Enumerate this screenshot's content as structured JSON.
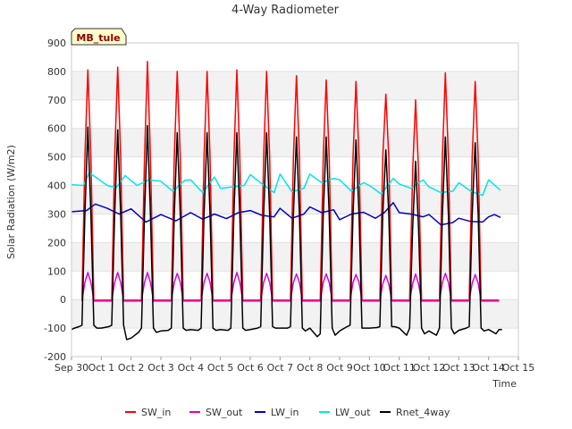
{
  "chart_data": {
    "type": "line",
    "title": "4-Way Radiometer",
    "site_label": "MB_tule",
    "xlabel": "Time",
    "ylabel": "Solar Radiation (W/m2)",
    "xlim": [
      0,
      15
    ],
    "ylim": [
      -200,
      900
    ],
    "x_ticks": [
      {
        "value": 0,
        "label": "Sep 30"
      },
      {
        "value": 1,
        "label": "Oct 1"
      },
      {
        "value": 2,
        "label": "Oct 2"
      },
      {
        "value": 3,
        "label": "Oct 3"
      },
      {
        "value": 4,
        "label": "Oct 4"
      },
      {
        "value": 5,
        "label": "Oct 5"
      },
      {
        "value": 6,
        "label": "Oct 6"
      },
      {
        "value": 7,
        "label": "Oct 7"
      },
      {
        "value": 8,
        "label": "Oct 8"
      },
      {
        "value": 9,
        "label": "Oct 9"
      },
      {
        "value": 10,
        "label": "Oct 10"
      },
      {
        "value": 11,
        "label": "Oct 11"
      },
      {
        "value": 12,
        "label": "Oct 12"
      },
      {
        "value": 13,
        "label": "Oct 13"
      },
      {
        "value": 14,
        "label": "Oct 14"
      },
      {
        "value": 15,
        "label": "Oct 15"
      }
    ],
    "y_ticks": [
      {
        "value": -200,
        "label": "-200"
      },
      {
        "value": -100,
        "label": "-100"
      },
      {
        "value": 0,
        "label": "0"
      },
      {
        "value": 100,
        "label": "100"
      },
      {
        "value": 200,
        "label": "200"
      },
      {
        "value": 300,
        "label": "300"
      },
      {
        "value": 400,
        "label": "400"
      },
      {
        "value": 500,
        "label": "500"
      },
      {
        "value": 600,
        "label": "600"
      },
      {
        "value": 700,
        "label": "700"
      },
      {
        "value": 800,
        "label": "800"
      },
      {
        "value": 900,
        "label": "900"
      }
    ],
    "legend_position": "bottom",
    "series": [
      {
        "name": "SW_in",
        "color": "#ff0000",
        "x": [
          0.35,
          0.45,
          0.55,
          0.65,
          0.75,
          1.35,
          1.45,
          1.55,
          1.65,
          1.75,
          2.35,
          2.45,
          2.55,
          2.65,
          2.75,
          3.35,
          3.45,
          3.55,
          3.65,
          3.75,
          4.35,
          4.45,
          4.55,
          4.65,
          4.75,
          5.35,
          5.45,
          5.55,
          5.65,
          5.75,
          6.35,
          6.45,
          6.55,
          6.65,
          6.75,
          7.35,
          7.45,
          7.55,
          7.65,
          7.75,
          8.35,
          8.45,
          8.55,
          8.65,
          8.75,
          9.35,
          9.45,
          9.55,
          9.65,
          9.75,
          10.35,
          10.45,
          10.55,
          10.65,
          10.75,
          11.35,
          11.45,
          11.55,
          11.65,
          11.75,
          12.35,
          12.45,
          12.55,
          12.65,
          12.75,
          13.35,
          13.45,
          13.55,
          13.65,
          13.75,
          14.35
        ],
        "y": [
          -5,
          500,
          805,
          500,
          -5,
          -5,
          500,
          815,
          500,
          -5,
          -5,
          500,
          835,
          500,
          -5,
          -5,
          500,
          800,
          500,
          -5,
          -5,
          500,
          800,
          500,
          -5,
          -5,
          500,
          805,
          500,
          -5,
          -5,
          500,
          800,
          500,
          -5,
          -5,
          500,
          785,
          500,
          -5,
          -5,
          500,
          770,
          500,
          -5,
          -5,
          500,
          765,
          500,
          -5,
          -5,
          500,
          720,
          500,
          -5,
          -5,
          450,
          700,
          450,
          -5,
          -5,
          500,
          795,
          500,
          -5,
          -5,
          500,
          765,
          500,
          -5,
          -5
        ]
      },
      {
        "name": "SW_out",
        "color": "#dd00dd",
        "x": [
          0.35,
          0.45,
          0.55,
          0.65,
          0.75,
          1.35,
          1.45,
          1.55,
          1.65,
          1.75,
          2.35,
          2.45,
          2.55,
          2.65,
          2.75,
          3.35,
          3.45,
          3.55,
          3.65,
          3.75,
          4.35,
          4.45,
          4.55,
          4.65,
          4.75,
          5.35,
          5.45,
          5.55,
          5.65,
          5.75,
          6.35,
          6.45,
          6.55,
          6.65,
          6.75,
          7.35,
          7.45,
          7.55,
          7.65,
          7.75,
          8.35,
          8.45,
          8.55,
          8.65,
          8.75,
          9.35,
          9.45,
          9.55,
          9.65,
          9.75,
          10.35,
          10.45,
          10.55,
          10.65,
          10.75,
          11.35,
          11.45,
          11.55,
          11.65,
          11.75,
          12.35,
          12.45,
          12.55,
          12.65,
          12.75,
          13.35,
          13.45,
          13.55,
          13.65,
          13.75,
          14.35
        ],
        "y": [
          -2,
          60,
          95,
          60,
          -2,
          -2,
          60,
          95,
          60,
          -2,
          -2,
          60,
          95,
          60,
          -2,
          -2,
          60,
          92,
          60,
          -2,
          -2,
          60,
          92,
          60,
          -2,
          -2,
          60,
          95,
          60,
          -2,
          -2,
          60,
          92,
          60,
          -2,
          -2,
          60,
          90,
          60,
          -2,
          -2,
          60,
          90,
          60,
          -2,
          -2,
          60,
          88,
          60,
          -2,
          -2,
          55,
          85,
          55,
          -2,
          -2,
          55,
          90,
          55,
          -2,
          -2,
          60,
          92,
          60,
          -2,
          -2,
          58,
          88,
          58,
          -2,
          -2
        ]
      },
      {
        "name": "LW_in",
        "color": "#0000cc",
        "x": [
          0.0,
          0.5,
          0.8,
          1.2,
          1.6,
          2.0,
          2.5,
          3.0,
          3.5,
          4.0,
          4.4,
          4.8,
          5.2,
          5.6,
          6.0,
          6.4,
          6.8,
          7.0,
          7.4,
          7.8,
          8.0,
          8.4,
          8.8,
          9.0,
          9.4,
          9.8,
          10.2,
          10.5,
          10.8,
          11.0,
          11.4,
          11.8,
          12.0,
          12.4,
          12.8,
          13.0,
          13.4,
          13.8,
          14.0,
          14.2,
          14.4
        ],
        "y": [
          308,
          312,
          335,
          320,
          300,
          318,
          272,
          298,
          276,
          305,
          282,
          300,
          284,
          305,
          312,
          295,
          290,
          320,
          285,
          300,
          325,
          305,
          315,
          280,
          300,
          306,
          285,
          305,
          340,
          305,
          300,
          290,
          298,
          262,
          270,
          285,
          274,
          272,
          290,
          298,
          288
        ]
      },
      {
        "name": "LW_out",
        "color": "#00e5ee",
        "x": [
          0.0,
          0.4,
          0.6,
          0.8,
          1.2,
          1.5,
          1.8,
          2.2,
          2.6,
          3.0,
          3.4,
          3.8,
          4.0,
          4.4,
          4.8,
          5.0,
          5.4,
          5.8,
          6.0,
          6.4,
          6.8,
          7.0,
          7.4,
          7.8,
          8.0,
          8.4,
          8.8,
          9.0,
          9.4,
          9.8,
          10.0,
          10.4,
          10.8,
          11.0,
          11.4,
          11.8,
          12.0,
          12.4,
          12.8,
          13.0,
          13.4,
          13.8,
          14.0,
          14.4
        ],
        "y": [
          403,
          400,
          445,
          430,
          400,
          392,
          435,
          400,
          420,
          415,
          380,
          418,
          420,
          375,
          430,
          390,
          395,
          400,
          438,
          405,
          375,
          440,
          378,
          390,
          440,
          410,
          425,
          420,
          380,
          410,
          400,
          370,
          425,
          405,
          390,
          420,
          395,
          375,
          380,
          410,
          380,
          365,
          420,
          383
        ]
      },
      {
        "name": "Rnet_4way",
        "color": "#000000",
        "x": [
          0.0,
          0.1,
          0.25,
          0.35,
          0.45,
          0.55,
          0.65,
          0.75,
          0.85,
          1.0,
          1.25,
          1.35,
          1.45,
          1.55,
          1.65,
          1.75,
          1.85,
          2.0,
          2.25,
          2.35,
          2.45,
          2.55,
          2.65,
          2.75,
          2.85,
          3.0,
          3.25,
          3.35,
          3.45,
          3.55,
          3.65,
          3.75,
          3.85,
          4.0,
          4.25,
          4.35,
          4.45,
          4.55,
          4.65,
          4.75,
          4.85,
          5.0,
          5.25,
          5.35,
          5.45,
          5.55,
          5.65,
          5.75,
          5.85,
          6.0,
          6.25,
          6.35,
          6.45,
          6.55,
          6.65,
          6.75,
          6.85,
          7.0,
          7.25,
          7.35,
          7.45,
          7.55,
          7.65,
          7.75,
          7.85,
          8.0,
          8.25,
          8.35,
          8.45,
          8.55,
          8.65,
          8.75,
          8.85,
          9.0,
          9.25,
          9.35,
          9.45,
          9.55,
          9.65,
          9.75,
          9.85,
          10.0,
          10.25,
          10.35,
          10.45,
          10.55,
          10.65,
          10.75,
          10.85,
          11.0,
          11.25,
          11.35,
          11.45,
          11.55,
          11.65,
          11.75,
          11.85,
          12.0,
          12.25,
          12.35,
          12.45,
          12.55,
          12.65,
          12.75,
          12.85,
          13.0,
          13.25,
          13.35,
          13.45,
          13.55,
          13.65,
          13.75,
          13.85,
          14.0,
          14.25,
          14.35,
          14.45
        ],
        "y": [
          -105,
          -100,
          -95,
          -90,
          300,
          605,
          300,
          -90,
          -100,
          -100,
          -95,
          -90,
          300,
          595,
          300,
          -90,
          -140,
          -135,
          -115,
          -100,
          300,
          610,
          300,
          -100,
          -115,
          -110,
          -108,
          -100,
          300,
          585,
          300,
          -100,
          -108,
          -105,
          -108,
          -100,
          300,
          585,
          300,
          -100,
          -108,
          -105,
          -108,
          -100,
          300,
          585,
          300,
          -100,
          -108,
          -105,
          -100,
          -95,
          300,
          585,
          300,
          -95,
          -100,
          -100,
          -100,
          -95,
          300,
          570,
          300,
          -100,
          -110,
          -100,
          -130,
          -120,
          300,
          570,
          300,
          -100,
          -125,
          -110,
          -95,
          -90,
          300,
          560,
          300,
          -100,
          -100,
          -100,
          -98,
          -95,
          300,
          525,
          300,
          -95,
          -95,
          -100,
          -125,
          -100,
          250,
          485,
          250,
          -100,
          -120,
          -110,
          -125,
          -100,
          300,
          570,
          300,
          -100,
          -120,
          -108,
          -100,
          -95,
          300,
          550,
          300,
          -100,
          -110,
          -105,
          -120,
          -105,
          -105
        ]
      }
    ]
  }
}
